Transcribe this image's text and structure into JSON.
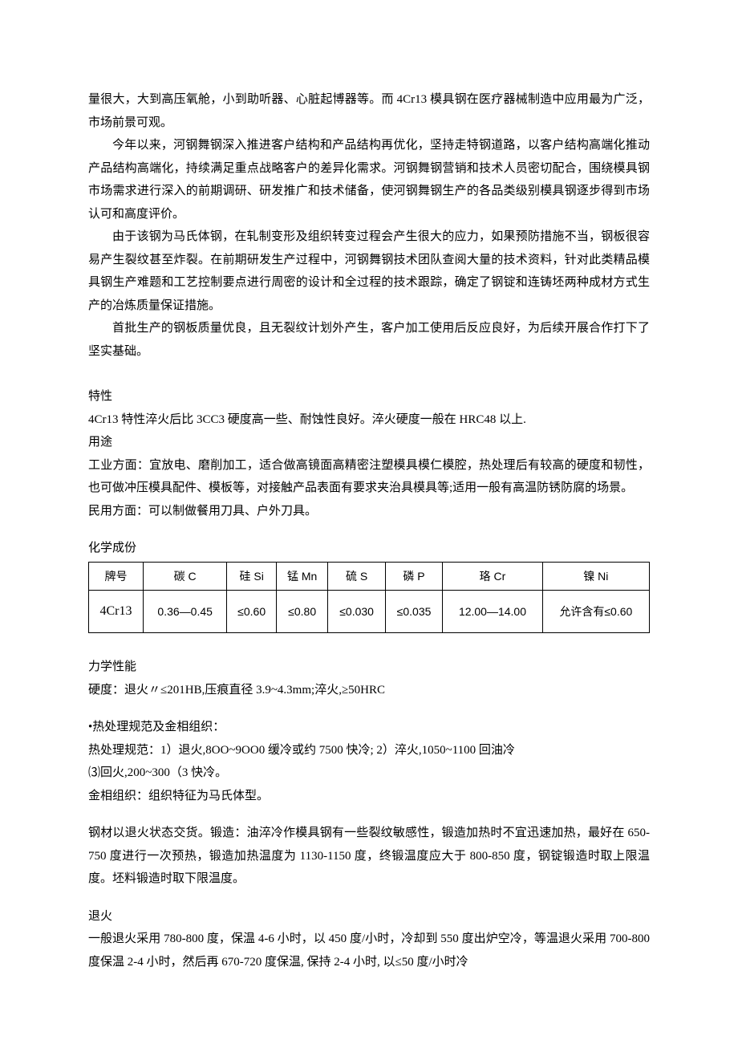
{
  "para1": "量很大，大到高压氧舱，小到助听器、心脏起博器等。而 4Cr13 模具钢在医疗器械制造中应用最为广泛，市场前景可观。",
  "para2": "今年以来，河钢舞钢深入推进客户结构和产品结构再优化，坚持走特钢道路，以客户结构高端化推动产品结构高端化，持续满足重点战略客户的差异化需求。河钢舞钢营销和技术人员密切配合，围绕模具钢市场需求进行深入的前期调研、研发推广和技术储备，使河钢舞钢生产的各品类级别模具钢逐步得到市场认可和高度评价。",
  "para3": "由于该钢为马氏体钢，在轧制变形及组织转变过程会产生很大的应力，如果预防措施不当，钢板很容易产生裂纹甚至炸裂。在前期研发生产过程中，河钢舞钢技术团队查阅大量的技术资料，针对此类精品模具钢生产难题和工艺控制要点进行周密的设计和全过程的技术跟踪，确定了钢锭和连铸坯两种成材方式生产的冶炼质量保证措施。",
  "para4": "首批生产的钢板质量优良，且无裂纹计划外产生，客户加工使用后反应良好，为后续开展合作打下了坚实基础。",
  "s_tx": "特性",
  "s_tx_body": "4Cr13 特性淬火后比 3CC3 硬度高一些、耐蚀性良好。淬火硬度一般在 HRC48 以上.",
  "s_yt": "用途",
  "s_yt_body1": "工业方面：宜放电、磨削加工，适合做高镜面高精密注塑模具模仁模腔，热处理后有较高的硬度和韧性，也可做冲压模具配件、模板等，对接触产品表面有要求夹治具模具等;适用一般有高温防锈防腐的场景。",
  "s_yt_body2": "民用方面：可以制做餐用刀具、户外刀具。",
  "s_hx": "化学成份",
  "table": {
    "headers": [
      "牌号",
      "碳 C",
      "硅 Si",
      "锰 Mn",
      "硫 S",
      "磷 P",
      "珞 Cr",
      "镍 Ni"
    ],
    "row": [
      "4Cr13",
      "0.36—0.45",
      "≤0.60",
      "≤0.80",
      "≤0.030",
      "≤0.035",
      "12.00—14.00",
      "允许含有≤0.60"
    ]
  },
  "s_lx": "力学性能",
  "s_lx_body": "硬度：退火〃≤201HB,压痕直径 3.9~4.3mm;淬火,≥50HRC",
  "s_rcl_title": "•热处理规范及金相组织：",
  "s_rcl_body1": "热处理规范：1）退火,8OO~9OO0 缓冷或约 7500 快冷; 2）淬火,1050~1100 回油冷",
  "s_rcl_body2": "⑶回火,200~300（3 快冷。",
  "s_rcl_body3": "金相组织：组织特征为马氏体型。",
  "s_forge": "钢材以退火状态交货。锻造：油淬冷作模具钢有一些裂纹敏感性，锻造加热时不宜迅速加热，最好在 650-750 度进行一次预热，锻造加热温度为 1130-1150 度，终锻温度应大于 800-850 度，钢锭锻造时取上限温度。坯料锻造时取下限温度。",
  "s_th": "退火",
  "s_th_body": "一般退火采用 780-800 度，保温 4-6 小时，以 450 度/小时，冷却到 550 度出炉空冷，等温退火采用 700-800 度保温 2-4 小时，然后再 670-720 度保温, 保持 2-4 小时, 以≤50 度/小时冷"
}
